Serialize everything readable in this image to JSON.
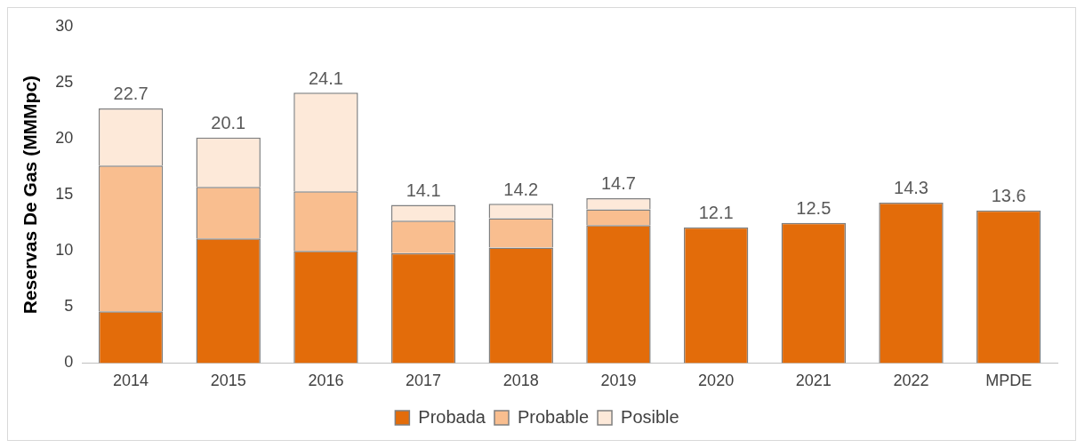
{
  "chart_data": {
    "type": "bar",
    "stacked": true,
    "ylabel": "Reservas De Gas (MMMpc)",
    "categories": [
      "2014",
      "2015",
      "2016",
      "2017",
      "2018",
      "2019",
      "2020",
      "2021",
      "2022",
      "MPDE"
    ],
    "series": [
      {
        "name": "Probada",
        "color": "#e36c0a",
        "values": [
          4.6,
          11.1,
          10.0,
          9.8,
          10.3,
          12.3,
          12.1,
          12.5,
          14.3,
          13.6
        ]
      },
      {
        "name": "Probable",
        "color": "#f9be8f",
        "values": [
          13.0,
          4.6,
          5.3,
          2.9,
          2.6,
          1.4,
          0,
          0,
          0,
          0
        ]
      },
      {
        "name": "Posible",
        "color": "#fde9d9",
        "values": [
          5.1,
          4.4,
          8.8,
          1.4,
          1.3,
          1.0,
          0,
          0,
          0,
          0
        ]
      }
    ],
    "totals": [
      "22.7",
      "20.1",
      "24.1",
      "14.1",
      "14.2",
      "14.7",
      "12.1",
      "12.5",
      "14.3",
      "13.6"
    ],
    "ylim": [
      0,
      30
    ],
    "yticks": [
      0,
      5,
      10,
      15,
      20,
      25,
      30
    ],
    "grid": false,
    "legend": "bottom"
  }
}
